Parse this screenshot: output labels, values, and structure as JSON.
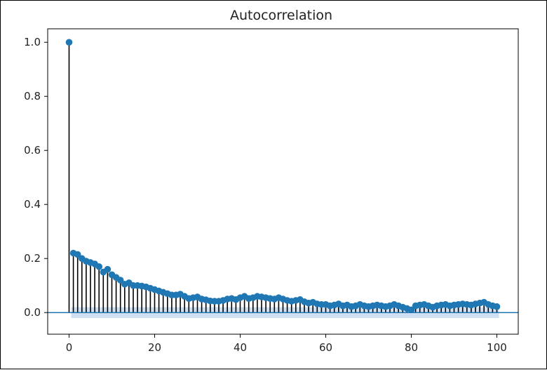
{
  "chart_data": {
    "type": "stem",
    "title": "Autocorrelation",
    "xlabel": "",
    "ylabel": "",
    "xlim": [
      -5,
      105
    ],
    "ylim": [
      -0.08,
      1.05
    ],
    "xticks": [
      0,
      20,
      40,
      60,
      80,
      100
    ],
    "yticks": [
      0.0,
      0.2,
      0.4,
      0.6,
      0.8,
      1.0
    ],
    "xtick_labels": [
      "0",
      "20",
      "40",
      "60",
      "80",
      "100"
    ],
    "ytick_labels": [
      "0.0",
      "0.2",
      "0.4",
      "0.6",
      "0.8",
      "1.0"
    ],
    "grid": false,
    "confidence_band": 0.02,
    "colors": {
      "marker": "#1f77b4",
      "stem": "#000000",
      "band": "#c6dbef",
      "axis_line": "#1f77b4"
    },
    "lags": [
      0,
      1,
      2,
      3,
      4,
      5,
      6,
      7,
      8,
      9,
      10,
      11,
      12,
      13,
      14,
      15,
      16,
      17,
      18,
      19,
      20,
      21,
      22,
      23,
      24,
      25,
      26,
      27,
      28,
      29,
      30,
      31,
      32,
      33,
      34,
      35,
      36,
      37,
      38,
      39,
      40,
      41,
      42,
      43,
      44,
      45,
      46,
      47,
      48,
      49,
      50,
      51,
      52,
      53,
      54,
      55,
      56,
      57,
      58,
      59,
      60,
      61,
      62,
      63,
      64,
      65,
      66,
      67,
      68,
      69,
      70,
      71,
      72,
      73,
      74,
      75,
      76,
      77,
      78,
      79,
      80,
      81,
      82,
      83,
      84,
      85,
      86,
      87,
      88,
      89,
      90,
      91,
      92,
      93,
      94,
      95,
      96,
      97,
      98,
      99,
      100
    ],
    "values": [
      1.0,
      0.22,
      0.215,
      0.2,
      0.19,
      0.185,
      0.18,
      0.17,
      0.15,
      0.16,
      0.14,
      0.13,
      0.12,
      0.105,
      0.11,
      0.1,
      0.1,
      0.098,
      0.095,
      0.09,
      0.085,
      0.08,
      0.075,
      0.07,
      0.065,
      0.065,
      0.068,
      0.06,
      0.052,
      0.055,
      0.058,
      0.05,
      0.047,
      0.043,
      0.042,
      0.042,
      0.045,
      0.05,
      0.052,
      0.048,
      0.055,
      0.06,
      0.052,
      0.055,
      0.06,
      0.058,
      0.055,
      0.052,
      0.05,
      0.055,
      0.05,
      0.045,
      0.042,
      0.045,
      0.048,
      0.04,
      0.035,
      0.038,
      0.032,
      0.03,
      0.03,
      0.025,
      0.028,
      0.032,
      0.025,
      0.028,
      0.022,
      0.025,
      0.03,
      0.025,
      0.022,
      0.025,
      0.028,
      0.025,
      0.022,
      0.025,
      0.03,
      0.025,
      0.02,
      0.015,
      0.01,
      0.025,
      0.028,
      0.03,
      0.025,
      0.02,
      0.025,
      0.028,
      0.03,
      0.025,
      0.028,
      0.03,
      0.032,
      0.03,
      0.028,
      0.032,
      0.035,
      0.038,
      0.03,
      0.025,
      0.022
    ]
  }
}
